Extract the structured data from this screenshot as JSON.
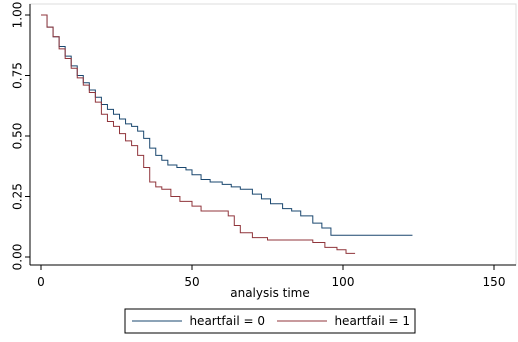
{
  "chart_data": {
    "type": "step",
    "x_label": "analysis time",
    "xlim": [
      0,
      150
    ],
    "xticks": [
      0,
      50,
      100,
      150
    ],
    "ylim": [
      0,
      1
    ],
    "yticks": [
      {
        "value": 0,
        "label": "0.00"
      },
      {
        "value": 0.25,
        "label": "0.25"
      },
      {
        "value": 0.5,
        "label": "0.50"
      },
      {
        "value": 0.75,
        "label": "0.75"
      },
      {
        "value": 1,
        "label": "1.00"
      }
    ],
    "series": [
      {
        "name": "heartfail = 0",
        "color": "#1a476f",
        "x": [
          0,
          2,
          4,
          6,
          8,
          10,
          12,
          14,
          16,
          18,
          20,
          22,
          24,
          26,
          28,
          30,
          32,
          34,
          36,
          38,
          40,
          42,
          45,
          48,
          50,
          53,
          56,
          60,
          63,
          66,
          70,
          73,
          76,
          80,
          83,
          86,
          90,
          93,
          96,
          123
        ],
        "values": [
          1.0,
          0.95,
          0.91,
          0.87,
          0.83,
          0.79,
          0.75,
          0.72,
          0.69,
          0.66,
          0.63,
          0.61,
          0.59,
          0.57,
          0.55,
          0.54,
          0.52,
          0.49,
          0.45,
          0.42,
          0.4,
          0.38,
          0.37,
          0.36,
          0.34,
          0.32,
          0.31,
          0.3,
          0.29,
          0.28,
          0.26,
          0.24,
          0.22,
          0.2,
          0.19,
          0.17,
          0.14,
          0.12,
          0.09,
          0.09
        ]
      },
      {
        "name": "heartfail = 1",
        "color": "#90353b",
        "x": [
          0,
          2,
          4,
          6,
          8,
          10,
          12,
          14,
          16,
          18,
          20,
          22,
          24,
          26,
          28,
          30,
          32,
          34,
          36,
          38,
          40,
          43,
          46,
          50,
          53,
          58,
          62,
          64,
          66,
          70,
          75,
          80,
          90,
          94,
          98,
          101,
          104
        ],
        "values": [
          1.0,
          0.95,
          0.91,
          0.86,
          0.82,
          0.78,
          0.74,
          0.71,
          0.68,
          0.64,
          0.59,
          0.56,
          0.54,
          0.51,
          0.48,
          0.46,
          0.42,
          0.37,
          0.31,
          0.29,
          0.28,
          0.25,
          0.23,
          0.21,
          0.19,
          0.19,
          0.17,
          0.13,
          0.1,
          0.08,
          0.07,
          0.07,
          0.06,
          0.04,
          0.03,
          0.015,
          0.015
        ]
      }
    ],
    "legend": "bottom"
  }
}
